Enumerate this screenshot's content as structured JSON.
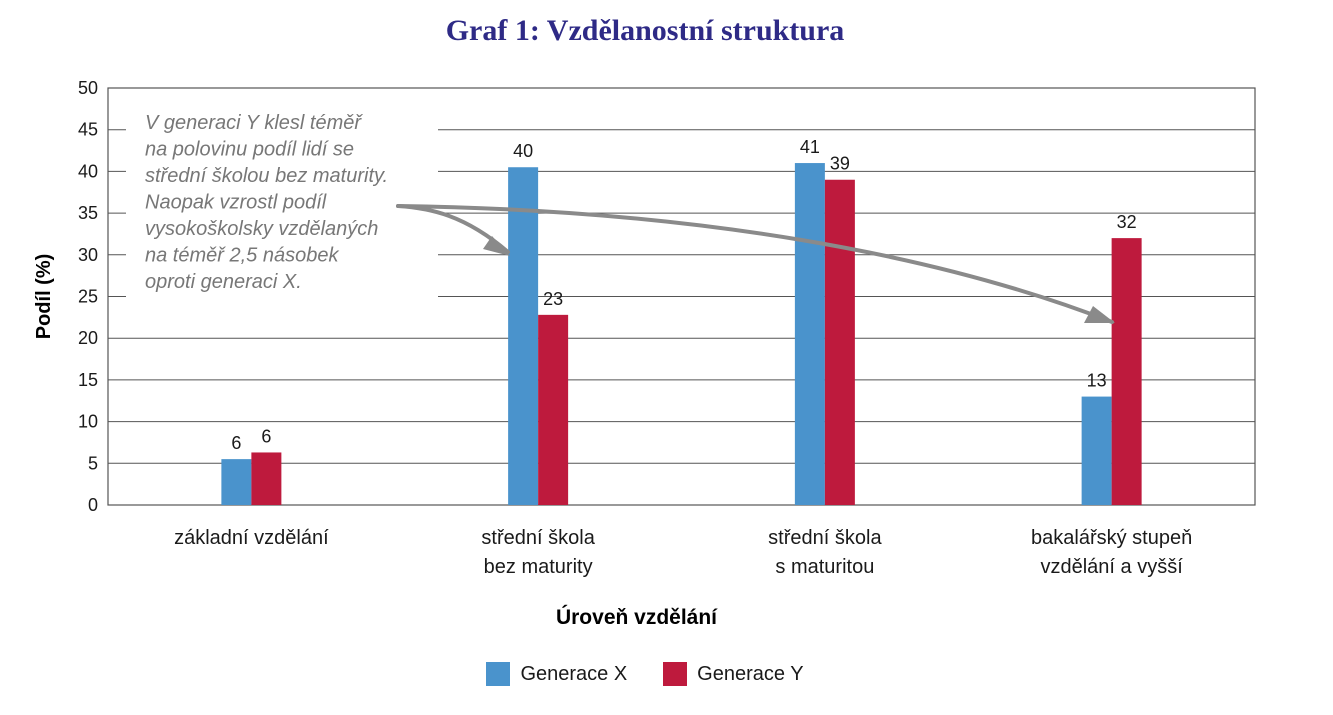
{
  "chart_data": {
    "type": "bar",
    "title": "Graf 1: Vzdělanostní struktura",
    "xlabel": "Úroveň vzdělání",
    "ylabel": "Podíl (%)",
    "ylim": [
      0,
      50
    ],
    "yticks": [
      0,
      5,
      10,
      15,
      20,
      25,
      30,
      35,
      40,
      45,
      50
    ],
    "grid": true,
    "legend_position": "bottom",
    "categories": [
      [
        "základní vzdělání"
      ],
      [
        "střední škola",
        "bez maturity"
      ],
      [
        "střední škola",
        "s maturitou"
      ],
      [
        "bakalářský stupeň",
        "vzdělání a vyšší"
      ]
    ],
    "series": [
      {
        "name": "Generace X",
        "color": "#4a93cc",
        "values": [
          5.5,
          40.5,
          41,
          13
        ],
        "labels": [
          "6",
          "40",
          "41",
          "13"
        ]
      },
      {
        "name": "Generace Y",
        "color": "#be1a3d",
        "values": [
          6.3,
          22.8,
          39,
          32
        ],
        "labels": [
          "6",
          "23",
          "39",
          "32"
        ]
      }
    ],
    "annotation": {
      "lines": [
        "V generaci Y klesl téměř",
        "na polovinu podíl lidí se",
        "střední školou bez maturity.",
        "Naopak vzrostl podíl",
        "vysokoškolsky vzdělaných",
        "na téměř 2,5 násobek",
        "oproti generaci X."
      ],
      "color": "#777777"
    }
  }
}
